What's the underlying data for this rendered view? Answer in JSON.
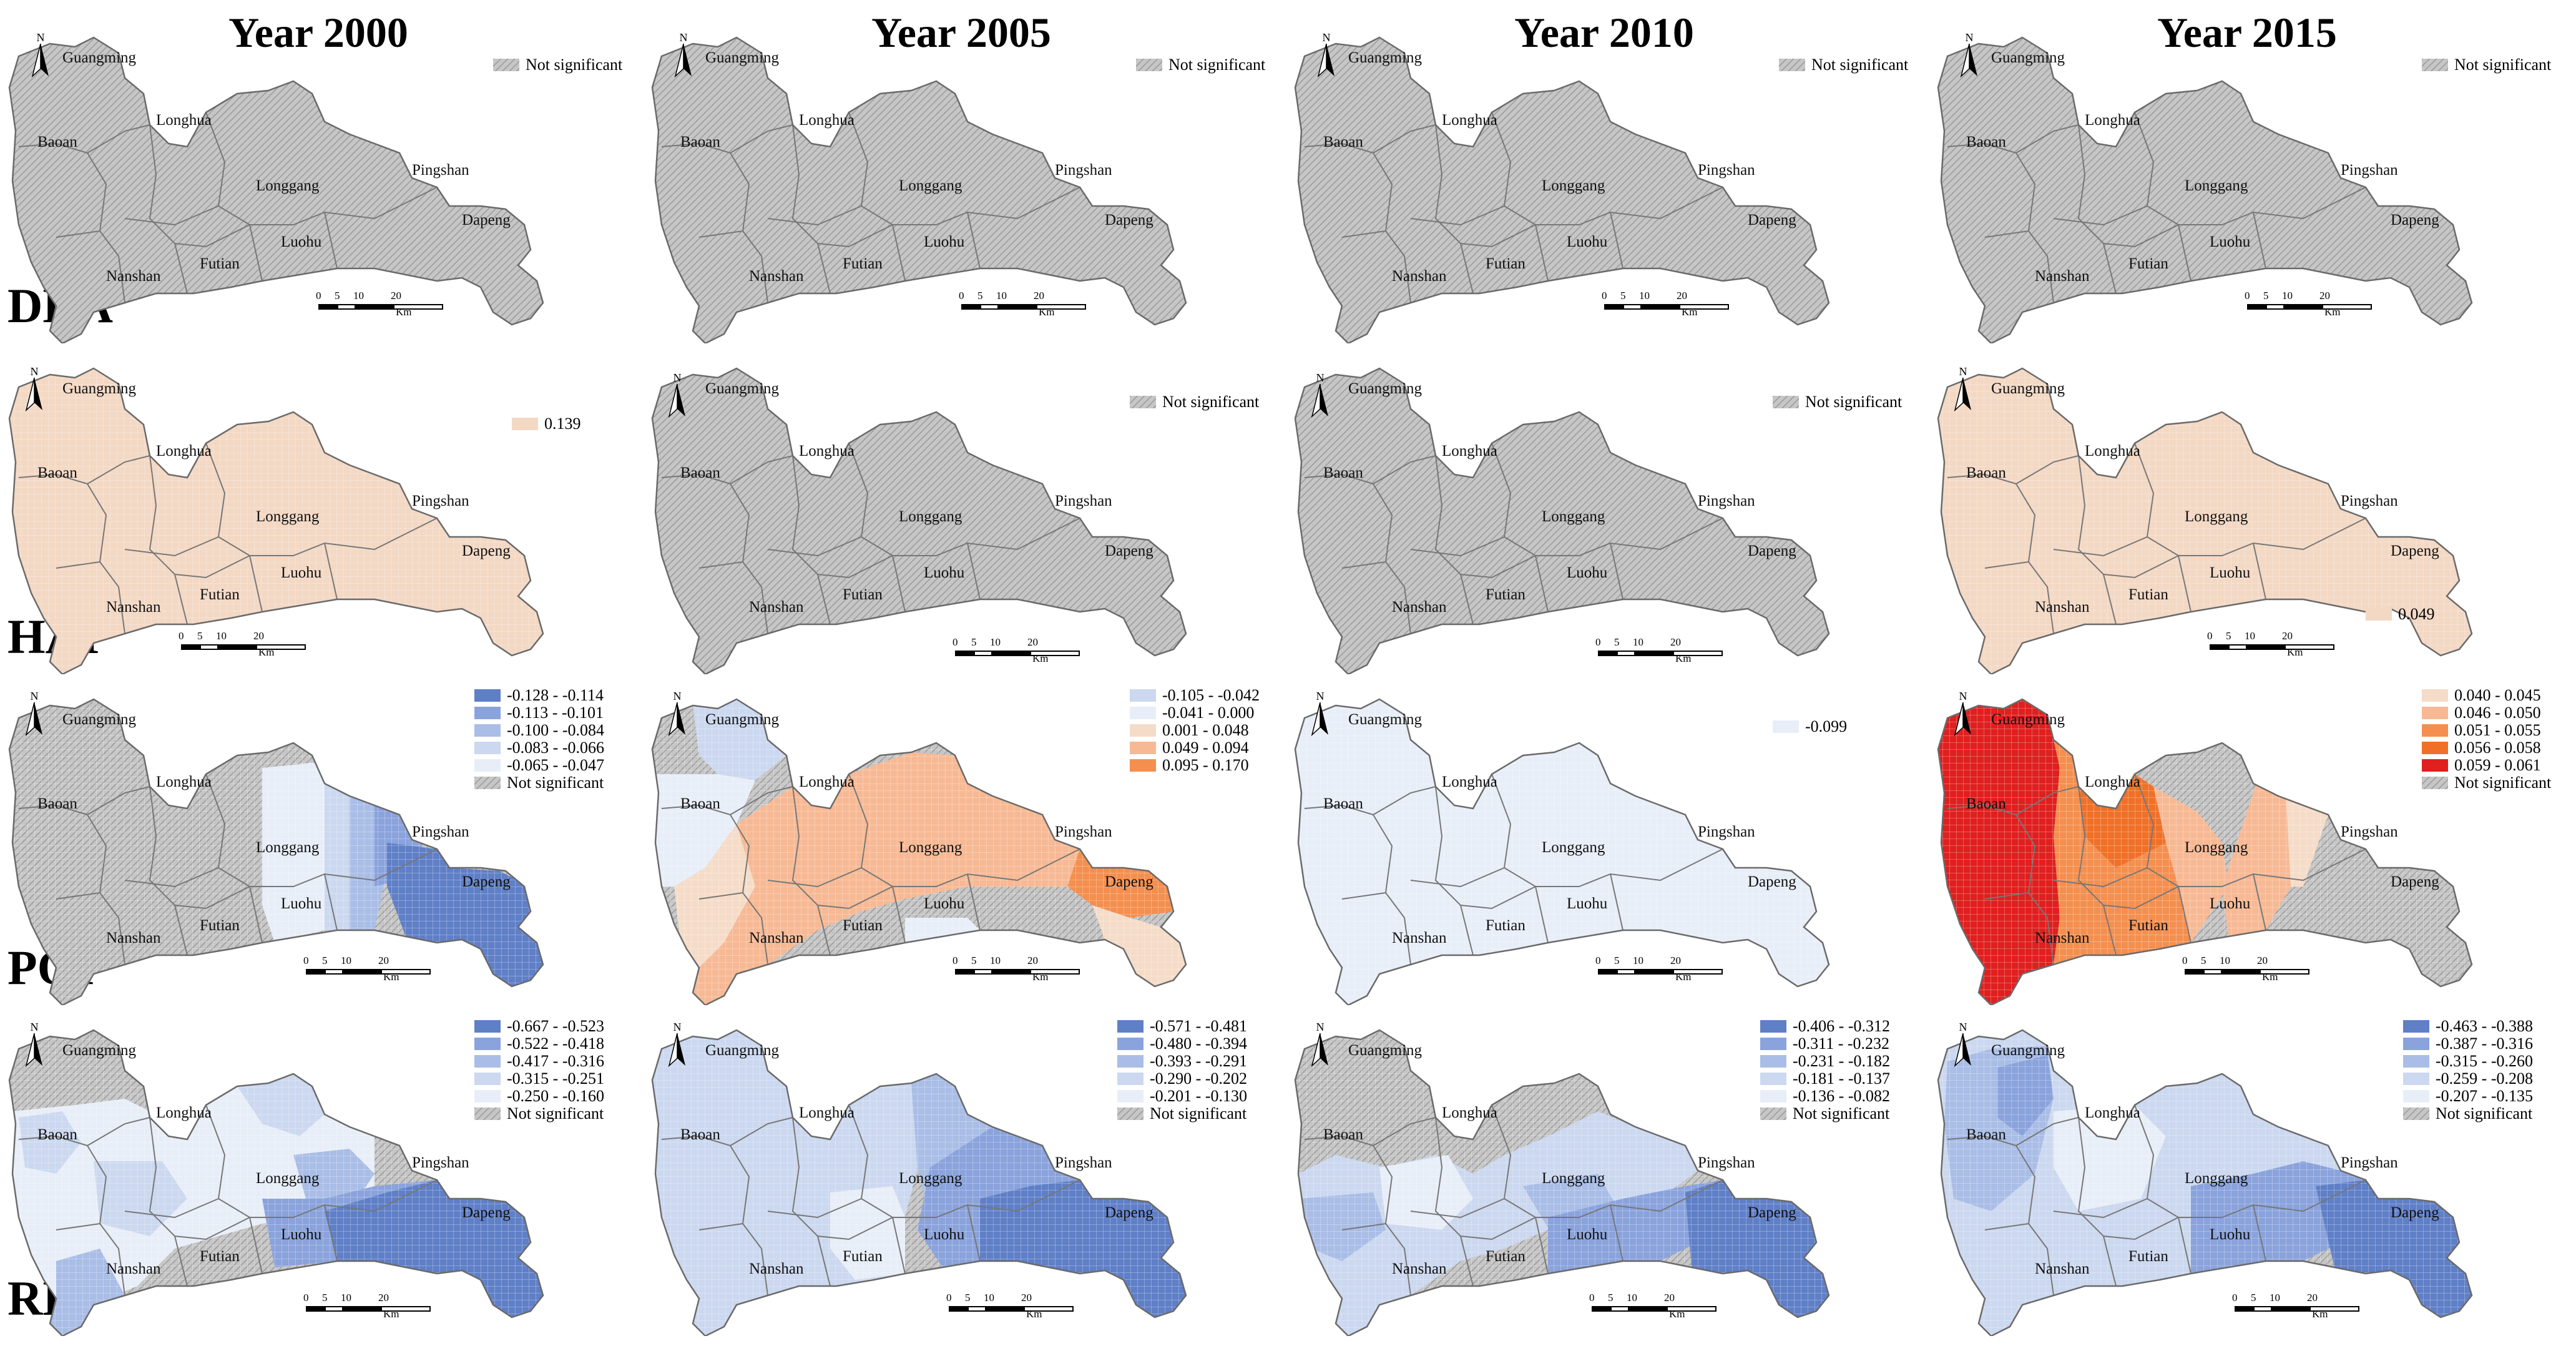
{
  "columns": [
    "Year 2000",
    "Year 2005",
    "Year 2010",
    "Year 2015"
  ],
  "rows": [
    "DDA",
    "HAI",
    "POP",
    "RD"
  ],
  "districts": [
    "Guangming",
    "Baoan",
    "Longhua",
    "Longgang",
    "Pingshan",
    "Dapeng",
    "Luohu",
    "Futian",
    "Nanshan"
  ],
  "north_label": "N",
  "scale": {
    "ticks": [
      "0",
      "5",
      "10",
      "20"
    ],
    "unit": "Km"
  },
  "colors": {
    "not_significant": "#c8c8c8",
    "peach": "#f3d8c4",
    "blue1": "#e8eef8",
    "blue2": "#cbd8ef",
    "blue3": "#a9bde6",
    "blue4": "#8aa3dc",
    "blue5": "#5f7fc7",
    "orange1": "#f5dcc8",
    "orange2": "#f7b994",
    "orange3": "#f48f4f",
    "orange4": "#f07028",
    "red": "#e01f1f"
  },
  "panels": [
    {
      "id": "DDA-2000",
      "legend": [
        {
          "label": "Not significant",
          "color": "hatch"
        }
      ]
    },
    {
      "id": "DDA-2005",
      "legend": [
        {
          "label": "Not significant",
          "color": "hatch"
        }
      ]
    },
    {
      "id": "DDA-2010",
      "legend": [
        {
          "label": "Not significant",
          "color": "hatch"
        }
      ]
    },
    {
      "id": "DDA-2015",
      "legend": [
        {
          "label": "Not significant",
          "color": "hatch"
        }
      ]
    },
    {
      "id": "HAI-2000",
      "legend": [
        {
          "label": "0.139",
          "color": "#f3d8c4"
        }
      ]
    },
    {
      "id": "HAI-2005",
      "legend": [
        {
          "label": "Not significant",
          "color": "hatch"
        }
      ]
    },
    {
      "id": "HAI-2010",
      "legend": [
        {
          "label": "Not significant",
          "color": "hatch"
        }
      ]
    },
    {
      "id": "HAI-2015",
      "legend": [
        {
          "label": "0.049",
          "color": "#f3d8c4"
        }
      ]
    },
    {
      "id": "POP-2000",
      "legend": [
        {
          "label": "-0.128 - -0.114",
          "color": "#5f7fc7"
        },
        {
          "label": "-0.113 - -0.101",
          "color": "#8aa3dc"
        },
        {
          "label": "-0.100 - -0.084",
          "color": "#a9bde6"
        },
        {
          "label": "-0.083 - -0.066",
          "color": "#cbd8ef"
        },
        {
          "label": "-0.065 - -0.047",
          "color": "#e8eef8"
        },
        {
          "label": "Not significant",
          "color": "hatch"
        }
      ]
    },
    {
      "id": "POP-2005",
      "legend": [
        {
          "label": "-0.105 - -0.042",
          "color": "#cbd8ef"
        },
        {
          "label": "-0.041 - 0.000",
          "color": "#e8eef8"
        },
        {
          "label": "0.001 - 0.048",
          "color": "#f5dcc8"
        },
        {
          "label": "0.049 - 0.094",
          "color": "#f7b994"
        },
        {
          "label": "0.095 - 0.170",
          "color": "#f48f4f"
        }
      ]
    },
    {
      "id": "POP-2010",
      "legend": [
        {
          "label": "-0.099",
          "color": "#e8eef8"
        }
      ]
    },
    {
      "id": "POP-2015",
      "legend": [
        {
          "label": "0.040 - 0.045",
          "color": "#f5dcc8"
        },
        {
          "label": "0.046 - 0.050",
          "color": "#f7b994"
        },
        {
          "label": "0.051 - 0.055",
          "color": "#f48f4f"
        },
        {
          "label": "0.056 - 0.058",
          "color": "#f07028"
        },
        {
          "label": "0.059 - 0.061",
          "color": "#e01f1f"
        },
        {
          "label": "Not significant",
          "color": "hatch"
        }
      ]
    },
    {
      "id": "RD-2000",
      "legend": [
        {
          "label": "-0.667 - -0.523",
          "color": "#5f7fc7"
        },
        {
          "label": "-0.522 - -0.418",
          "color": "#8aa3dc"
        },
        {
          "label": "-0.417 - -0.316",
          "color": "#a9bde6"
        },
        {
          "label": "-0.315 - -0.251",
          "color": "#cbd8ef"
        },
        {
          "label": "-0.250 - -0.160",
          "color": "#e8eef8"
        },
        {
          "label": "Not significant",
          "color": "hatch"
        }
      ]
    },
    {
      "id": "RD-2005",
      "legend": [
        {
          "label": "-0.571 - -0.481",
          "color": "#5f7fc7"
        },
        {
          "label": "-0.480 - -0.394",
          "color": "#8aa3dc"
        },
        {
          "label": "-0.393 - -0.291",
          "color": "#a9bde6"
        },
        {
          "label": "-0.290 - -0.202",
          "color": "#cbd8ef"
        },
        {
          "label": "-0.201 - -0.130",
          "color": "#e8eef8"
        },
        {
          "label": "Not significant",
          "color": "hatch"
        }
      ]
    },
    {
      "id": "RD-2010",
      "legend": [
        {
          "label": "-0.406 - -0.312",
          "color": "#5f7fc7"
        },
        {
          "label": "-0.311 - -0.232",
          "color": "#8aa3dc"
        },
        {
          "label": "-0.231 - -0.182",
          "color": "#a9bde6"
        },
        {
          "label": "-0.181 - -0.137",
          "color": "#cbd8ef"
        },
        {
          "label": "-0.136 - -0.082",
          "color": "#e8eef8"
        },
        {
          "label": "Not significant",
          "color": "hatch"
        }
      ]
    },
    {
      "id": "RD-2015",
      "legend": [
        {
          "label": "-0.463 - -0.388",
          "color": "#5f7fc7"
        },
        {
          "label": "-0.387 - -0.316",
          "color": "#8aa3dc"
        },
        {
          "label": "-0.315 - -0.260",
          "color": "#a9bde6"
        },
        {
          "label": "-0.259 - -0.208",
          "color": "#cbd8ef"
        },
        {
          "label": "-0.207 - -0.135",
          "color": "#e8eef8"
        },
        {
          "label": "Not significant",
          "color": "hatch"
        }
      ]
    }
  ]
}
